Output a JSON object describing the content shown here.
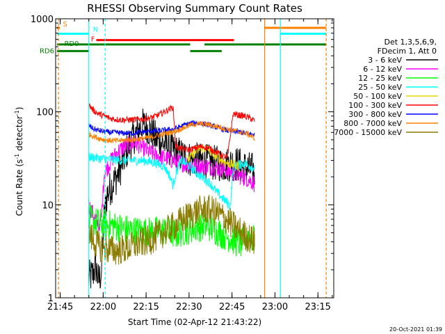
{
  "chart_data": {
    "type": "line",
    "title": "RHESSI Observing Summary Count Rates",
    "xlabel": "Start Time (02-Apr-12 21:43:22)",
    "ylabel_main": "Count Rate (s",
    "ylabel_sup": "-1",
    "ylabel_rest": " detector",
    "ylabel_sup2": "-1",
    "ylabel_end": ")",
    "y_scale": "log",
    "ylim": [
      1,
      1000
    ],
    "xlim": [
      "21:43:22",
      "23:20:30"
    ],
    "x_ticks": [
      {
        "label": "21:45",
        "min": 1.6
      },
      {
        "label": "22:00",
        "min": 16.6
      },
      {
        "label": "22:15",
        "min": 31.6
      },
      {
        "label": "22:30",
        "min": 46.6
      },
      {
        "label": "22:45",
        "min": 61.6
      },
      {
        "label": "23:00",
        "min": 76.6
      },
      {
        "label": "23:15",
        "min": 91.6
      }
    ],
    "y_ticks": [
      {
        "label": "1",
        "value": 1
      },
      {
        "label": "10",
        "value": 10
      },
      {
        "label": "100",
        "value": 100
      },
      {
        "label": "1000",
        "value": 1000
      }
    ],
    "legend": {
      "placement": "right",
      "header": [
        "Det 1,3,5,6,9,",
        "FDecim 1, Att 0"
      ]
    },
    "data_window": {
      "start_min": 11.5,
      "end_min": 69.5
    },
    "series": [
      {
        "name": "3 - 6 keV",
        "color": "#000000",
        "points": [
          [
            11.5,
            1.6
          ],
          [
            13,
            1.8
          ],
          [
            14,
            2.2
          ],
          [
            15,
            1.5
          ],
          [
            16,
            1.9
          ],
          [
            17,
            8
          ],
          [
            18,
            13
          ],
          [
            20,
            17
          ],
          [
            22,
            22
          ],
          [
            24,
            32
          ],
          [
            26,
            46
          ],
          [
            28,
            58
          ],
          [
            30,
            70
          ],
          [
            31,
            72
          ],
          [
            33,
            62
          ],
          [
            35,
            52
          ],
          [
            38,
            45
          ],
          [
            41,
            38
          ],
          [
            44,
            34
          ],
          [
            47,
            31
          ],
          [
            50,
            30
          ],
          [
            53,
            29
          ],
          [
            56,
            28
          ],
          [
            59,
            27
          ],
          [
            62,
            28
          ],
          [
            64,
            27
          ],
          [
            66,
            25
          ],
          [
            68,
            24
          ],
          [
            69.5,
            23
          ]
        ]
      },
      {
        "name": "6 - 12 keV",
        "color": "#ff00ff",
        "points": [
          [
            11.5,
            10
          ],
          [
            13,
            8
          ],
          [
            15,
            6
          ],
          [
            16,
            7
          ],
          [
            17,
            22
          ],
          [
            20,
            32
          ],
          [
            22,
            38
          ],
          [
            24,
            42
          ],
          [
            26,
            45
          ],
          [
            28,
            46
          ],
          [
            30,
            42
          ],
          [
            32,
            38
          ],
          [
            35,
            34
          ],
          [
            38,
            32
          ],
          [
            41,
            30
          ],
          [
            44,
            28
          ],
          [
            47,
            27
          ],
          [
            50,
            26
          ],
          [
            53,
            26
          ],
          [
            56,
            25
          ],
          [
            59,
            24
          ],
          [
            62,
            22
          ],
          [
            65,
            20
          ],
          [
            67,
            19
          ],
          [
            69.5,
            17
          ]
        ]
      },
      {
        "name": "12 - 25 keV",
        "color": "#00ff00",
        "points": [
          [
            11.5,
            7
          ],
          [
            14,
            6.5
          ],
          [
            17,
            6.2
          ],
          [
            20,
            6
          ],
          [
            23,
            5.6
          ],
          [
            26,
            5.3
          ],
          [
            29,
            5.2
          ],
          [
            32,
            5.1
          ],
          [
            35,
            5.2
          ],
          [
            38,
            5.3
          ],
          [
            40,
            5.0
          ],
          [
            42,
            4.8
          ],
          [
            44,
            5.1
          ],
          [
            47,
            5.5
          ],
          [
            50,
            5.8
          ],
          [
            53,
            6.0
          ],
          [
            56,
            5.3
          ],
          [
            59,
            4.7
          ],
          [
            61,
            4.4
          ],
          [
            63,
            4.0
          ],
          [
            65,
            3.8
          ],
          [
            67,
            4.6
          ],
          [
            69.5,
            4.2
          ]
        ]
      },
      {
        "name": "25 - 50 keV",
        "color": "#00ffff",
        "points": [
          [
            11.5,
            33
          ],
          [
            14,
            32
          ],
          [
            17,
            31
          ],
          [
            20,
            30.5
          ],
          [
            23,
            30
          ],
          [
            26,
            30
          ],
          [
            29,
            30
          ],
          [
            32,
            29.5
          ],
          [
            35,
            28
          ],
          [
            38,
            26
          ],
          [
            40,
            20
          ],
          [
            41,
            16
          ],
          [
            42,
            22
          ],
          [
            44,
            30
          ],
          [
            46,
            27
          ],
          [
            48,
            24
          ],
          [
            50,
            21
          ],
          [
            52,
            19
          ],
          [
            54,
            17
          ],
          [
            56,
            14
          ],
          [
            58,
            12
          ],
          [
            60,
            10.5
          ],
          [
            61,
            9.5
          ],
          [
            62,
            25
          ],
          [
            64,
            27
          ],
          [
            66,
            28
          ],
          [
            68,
            26
          ],
          [
            69.5,
            25
          ]
        ]
      },
      {
        "name": "50 - 100 keV",
        "color": "#e8d800",
        "points": [
          [
            46,
            30
          ],
          [
            48,
            35
          ],
          [
            50,
            40
          ],
          [
            52,
            41
          ],
          [
            54,
            38
          ],
          [
            56,
            33
          ],
          [
            58,
            30
          ],
          [
            60,
            28
          ],
          [
            62,
            27
          ],
          [
            64,
            26
          ]
        ]
      },
      {
        "name": "100 - 300 keV",
        "color": "#ff0000",
        "points": [
          [
            11.5,
            120
          ],
          [
            13,
            105
          ],
          [
            15,
            95
          ],
          [
            17,
            90
          ],
          [
            19,
            85
          ],
          [
            21,
            83
          ],
          [
            23,
            82
          ],
          [
            25,
            82
          ],
          [
            27,
            82
          ],
          [
            29,
            83
          ],
          [
            31,
            84
          ],
          [
            33,
            86
          ],
          [
            35,
            90
          ],
          [
            37,
            96
          ],
          [
            39,
            104
          ],
          [
            41,
            112
          ],
          [
            42,
            42
          ],
          [
            44,
            40
          ],
          [
            46,
            39
          ],
          [
            48,
            40
          ],
          [
            50,
            42
          ],
          [
            52,
            42
          ],
          [
            54,
            40
          ],
          [
            56,
            37
          ],
          [
            58,
            34
          ],
          [
            60,
            32
          ],
          [
            62,
            95
          ],
          [
            64,
            92
          ],
          [
            66,
            90
          ],
          [
            68,
            85
          ],
          [
            69.5,
            80
          ]
        ]
      },
      {
        "name": "300 - 800 keV",
        "color": "#0000ff",
        "points": [
          [
            11.5,
            72
          ],
          [
            13,
            66
          ],
          [
            15,
            63
          ],
          [
            17,
            61
          ],
          [
            19,
            60
          ],
          [
            21,
            60
          ],
          [
            23,
            59
          ],
          [
            25,
            59
          ],
          [
            27,
            59
          ],
          [
            29,
            60
          ],
          [
            31,
            61
          ],
          [
            33,
            62
          ],
          [
            35,
            62
          ],
          [
            37,
            63
          ],
          [
            39,
            64
          ],
          [
            41,
            65
          ],
          [
            43,
            68
          ],
          [
            45,
            72
          ],
          [
            47,
            75
          ],
          [
            49,
            76
          ],
          [
            51,
            75
          ],
          [
            53,
            73
          ],
          [
            55,
            70
          ],
          [
            57,
            67
          ],
          [
            59,
            64
          ],
          [
            61,
            62
          ],
          [
            63,
            61
          ],
          [
            65,
            60
          ],
          [
            67,
            58
          ],
          [
            69.5,
            57
          ]
        ]
      },
      {
        "name": "800 - 7000 keV",
        "color": "#ff8000",
        "points": [
          [
            11.5,
            58
          ],
          [
            13,
            55
          ],
          [
            15,
            52
          ],
          [
            17,
            50
          ],
          [
            19,
            49
          ],
          [
            21,
            49
          ],
          [
            23,
            49
          ],
          [
            25,
            50
          ],
          [
            27,
            50
          ],
          [
            29,
            51
          ],
          [
            31,
            52
          ],
          [
            33,
            53
          ],
          [
            35,
            55
          ],
          [
            37,
            57
          ],
          [
            39,
            59
          ],
          [
            41,
            61
          ],
          [
            43,
            64
          ],
          [
            45,
            68
          ],
          [
            47,
            72
          ],
          [
            49,
            74
          ],
          [
            51,
            74
          ],
          [
            53,
            73
          ],
          [
            55,
            71
          ],
          [
            57,
            69
          ],
          [
            59,
            66
          ],
          [
            61,
            64
          ],
          [
            63,
            62
          ],
          [
            65,
            60
          ],
          [
            67,
            58
          ],
          [
            69.5,
            52
          ]
        ]
      },
      {
        "name": "7000 - 15000 keV",
        "color": "#8b7a00",
        "points": [
          [
            11.5,
            5
          ],
          [
            13,
            4.2
          ],
          [
            15,
            3.6
          ],
          [
            17,
            3.4
          ],
          [
            19,
            3.3
          ],
          [
            21,
            3.2
          ],
          [
            23,
            3.3
          ],
          [
            25,
            3.4
          ],
          [
            27,
            3.6
          ],
          [
            29,
            3.8
          ],
          [
            31,
            4.0
          ],
          [
            33,
            4.2
          ],
          [
            35,
            4.5
          ],
          [
            37,
            4.9
          ],
          [
            39,
            5.3
          ],
          [
            41,
            5.8
          ],
          [
            43,
            6.4
          ],
          [
            45,
            7.1
          ],
          [
            47,
            7.8
          ],
          [
            49,
            8.4
          ],
          [
            51,
            8.8
          ],
          [
            53,
            8.9
          ],
          [
            55,
            8.6
          ],
          [
            57,
            8.0
          ],
          [
            59,
            7.2
          ],
          [
            61,
            6.4
          ],
          [
            63,
            5.6
          ],
          [
            65,
            5.0
          ],
          [
            67,
            4.5
          ],
          [
            69.5,
            4.0
          ]
        ]
      }
    ],
    "flags": [
      {
        "label": "S",
        "color": "#ff8000",
        "value": 800,
        "segments": [
          [
            0.5,
            1.5
          ],
          [
            73,
            94.5
          ]
        ]
      },
      {
        "label": "N",
        "color": "#00ffff",
        "value": 690,
        "segments": [
          [
            0.5,
            11.6
          ],
          [
            78.5,
            94.5
          ]
        ]
      },
      {
        "label": "F",
        "color": "#ff0000",
        "value": 590,
        "segments": [
          [
            14.2,
            62.3
          ]
        ]
      },
      {
        "label": "RD0",
        "color": "#008000",
        "value": 530,
        "segments": [
          [
            0.5,
            47
          ],
          [
            52,
            94.5
          ]
        ]
      },
      {
        "label": "RD6",
        "color": "#008000",
        "value": 450,
        "segments": [
          [
            0.5,
            11.6
          ],
          [
            47,
            58
          ]
        ]
      }
    ],
    "vlines": [
      {
        "min": 1.0,
        "color": "#ff8000",
        "style": "dashed"
      },
      {
        "min": 11.6,
        "color": "#00ffff",
        "style": "solid"
      },
      {
        "min": 17.3,
        "color": "#00ffff",
        "style": "dashed"
      },
      {
        "min": 73.0,
        "color": "#ff8000",
        "style": "solid"
      },
      {
        "min": 78.5,
        "color": "#00ffff",
        "style": "solid"
      },
      {
        "min": 94.5,
        "color": "#ff8000",
        "style": "dashed"
      }
    ]
  },
  "timestamp": "20-Oct-2021 01:39"
}
